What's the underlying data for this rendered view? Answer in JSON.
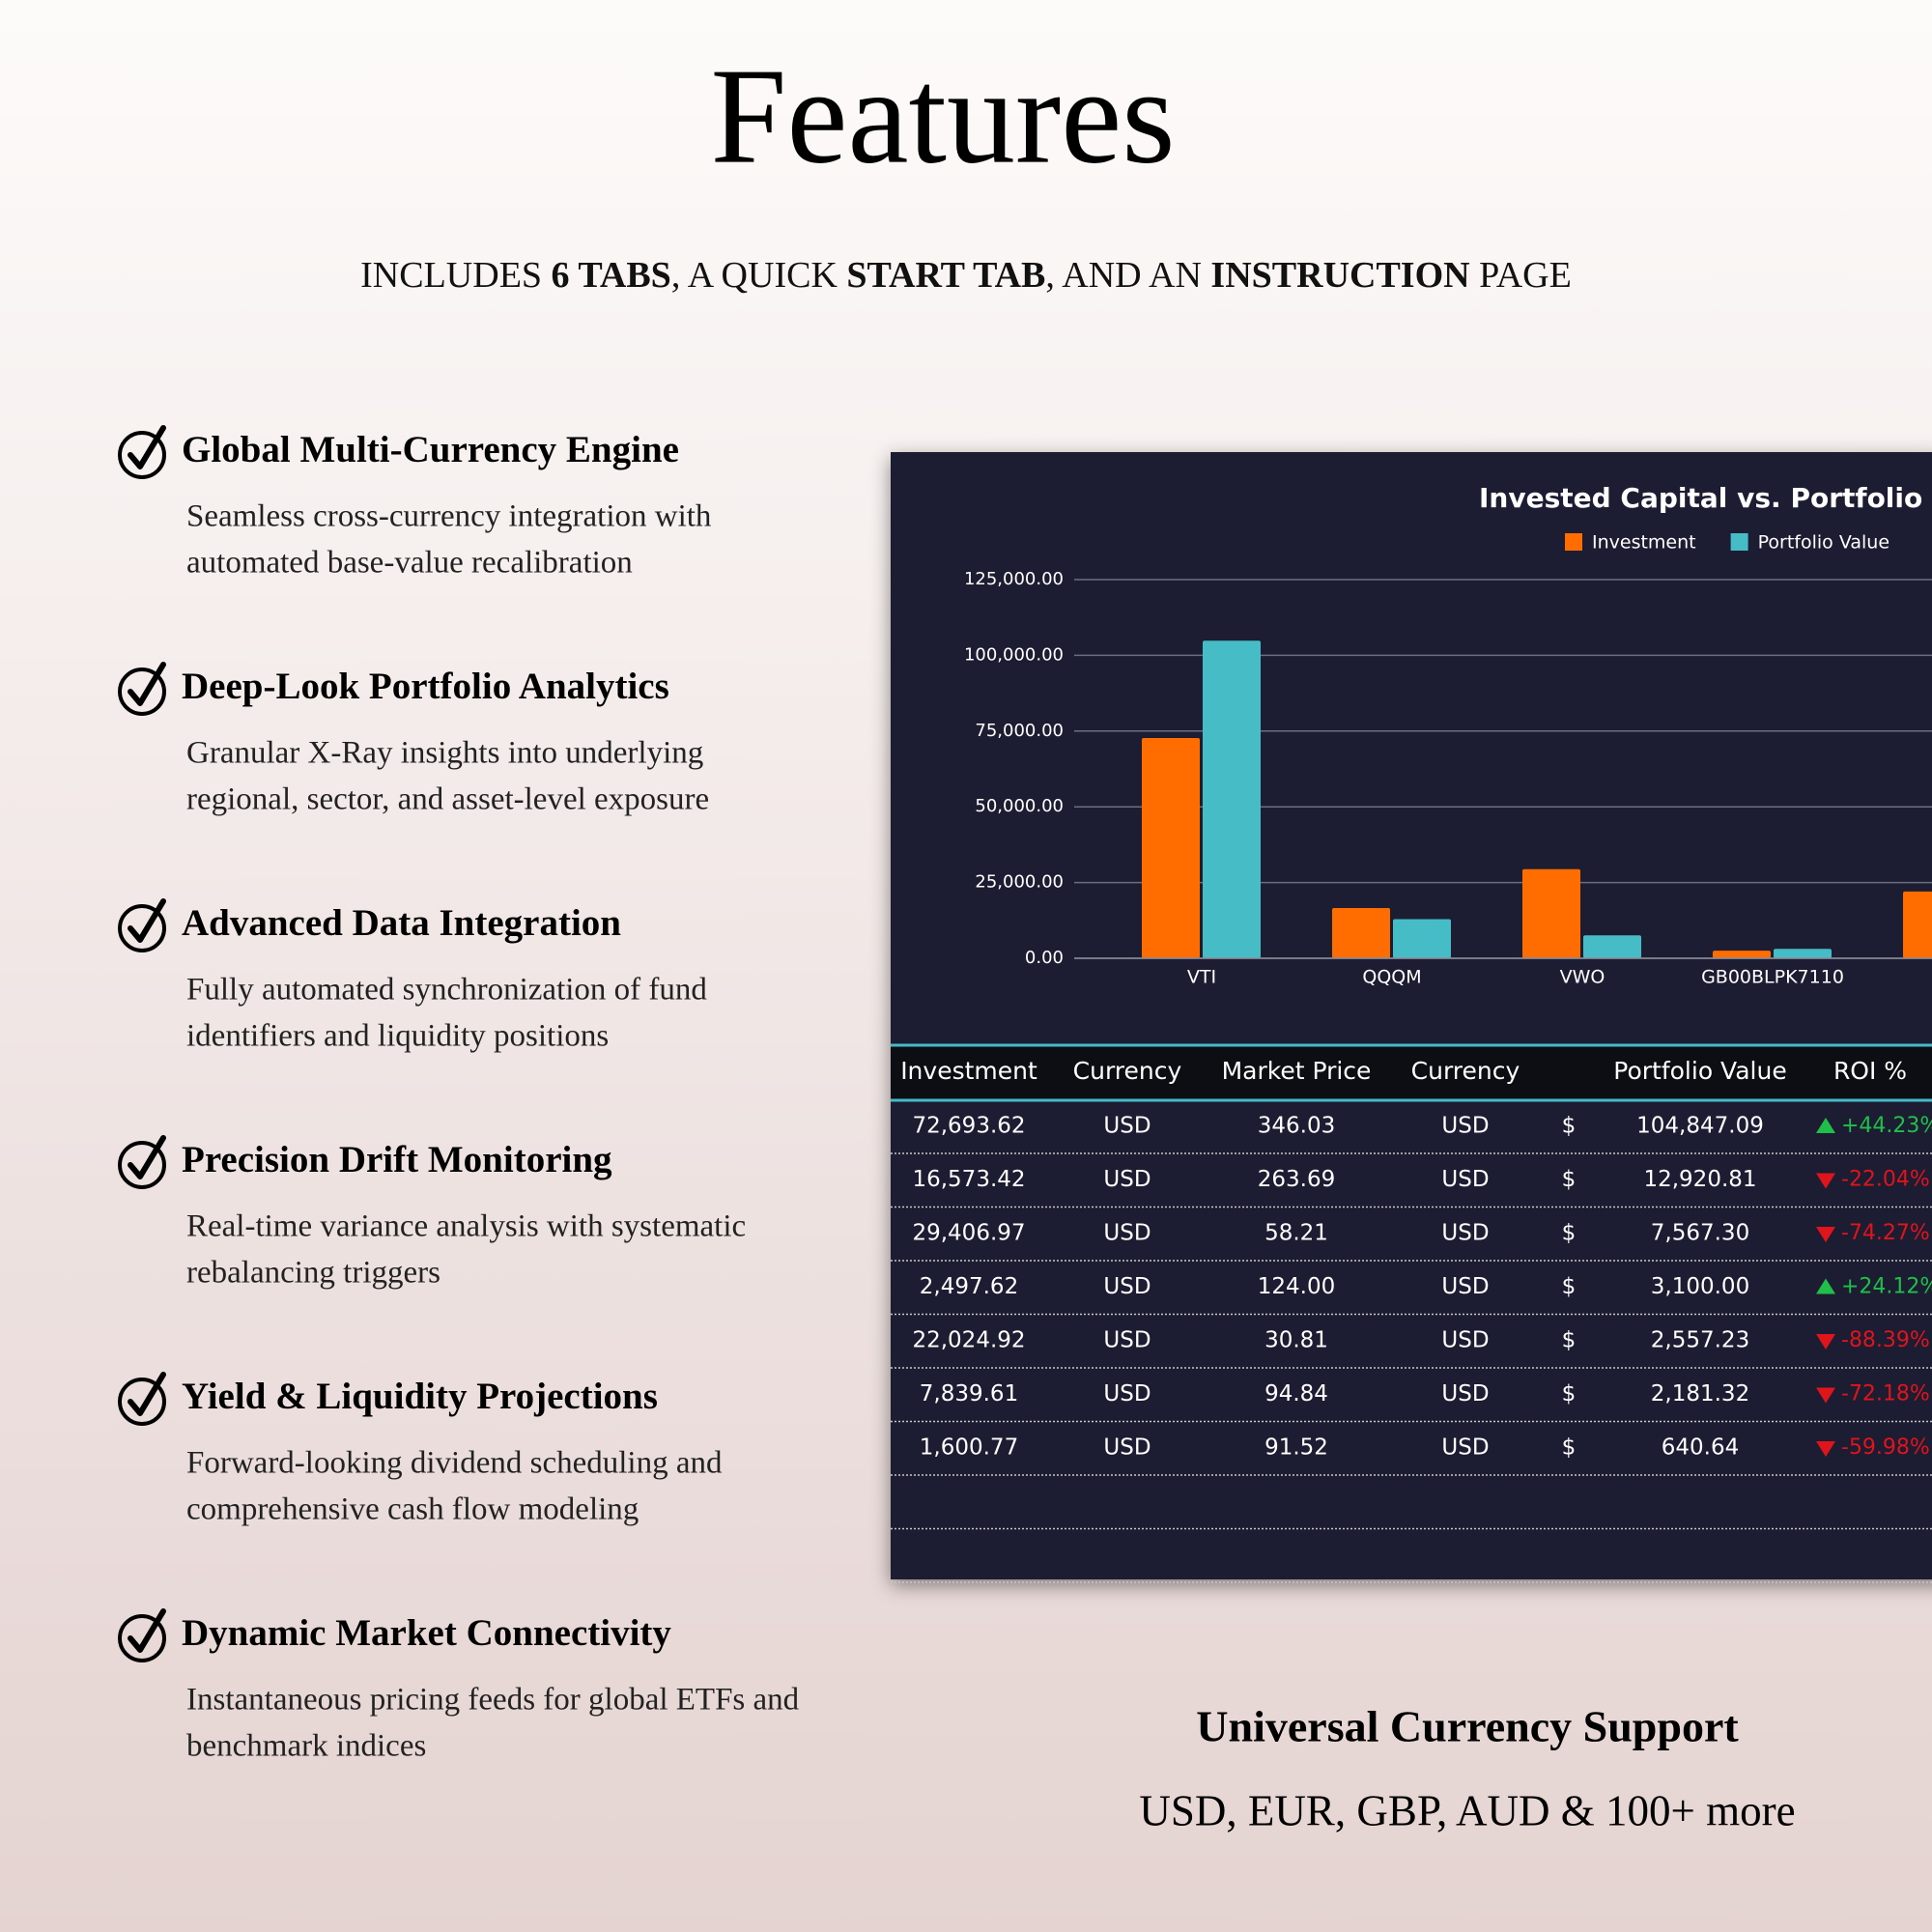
{
  "header": {
    "title": "Features",
    "subtitle": [
      {
        "text": "INCLUDES ",
        "bold": false
      },
      {
        "text": "6 TABS",
        "bold": true
      },
      {
        "text": ", A QUICK ",
        "bold": false
      },
      {
        "text": "START TAB",
        "bold": true
      },
      {
        "text": ", AND AN ",
        "bold": false
      },
      {
        "text": "INSTRUCTION",
        "bold": true
      },
      {
        "text": " PAGE",
        "bold": false
      }
    ]
  },
  "features": [
    {
      "title": "Global Multi-Currency Engine",
      "lines": [
        "Seamless cross-currency integration with",
        "automated base-value recalibration"
      ]
    },
    {
      "title": "Deep-Look Portfolio Analytics",
      "lines": [
        "Granular X-Ray insights into underlying",
        "regional, sector, and asset-level exposure"
      ]
    },
    {
      "title": "Advanced Data Integration",
      "lines": [
        "Fully automated synchronization of fund",
        "identifiers and liquidity positions"
      ]
    },
    {
      "title": "Precision Drift Monitoring",
      "lines": [
        "Real-time variance analysis with systematic",
        "rebalancing triggers"
      ]
    },
    {
      "title": "Yield & Liquidity Projections",
      "lines": [
        "Forward-looking dividend scheduling and",
        "comprehensive cash flow modeling"
      ]
    },
    {
      "title": "Dynamic Market Connectivity",
      "lines": [
        "Instantaneous pricing feeds for global ETFs and",
        "benchmark indices"
      ]
    }
  ],
  "chart_data": {
    "type": "bar",
    "title": "Invested Capital vs. Portfolio Valu",
    "categories": [
      "VTI",
      "QQQM",
      "VWO",
      "GB00BLPK7110",
      null
    ],
    "series": [
      {
        "name": "Investment",
        "color": "#ff6d01",
        "values": [
          72693.62,
          16573.42,
          29406.97,
          2497.62,
          22024.92
        ]
      },
      {
        "name": "Portfolio Value",
        "color": "#46bdc6",
        "values": [
          104847.09,
          12920.81,
          7567.3,
          3100.0,
          null
        ]
      }
    ],
    "ylim": [
      0,
      125000
    ],
    "yticks": [
      {
        "value": 0,
        "label": "0.00"
      },
      {
        "value": 25000,
        "label": "25,000.00"
      },
      {
        "value": 50000,
        "label": "50,000.00"
      },
      {
        "value": 75000,
        "label": "75,000.00"
      },
      {
        "value": 100000,
        "label": "100,000.00"
      },
      {
        "value": 125000,
        "label": "125,000.00"
      }
    ],
    "grid": true,
    "legend": "top"
  },
  "table": {
    "headers": [
      "Investment",
      "Currency",
      "Market Price",
      "Currency",
      "Portfolio Value",
      "ROI %"
    ],
    "rows": [
      [
        "72,693.62",
        "USD",
        "346.03",
        "USD",
        "$",
        "104,847.09",
        "+44.23%"
      ],
      [
        "16,573.42",
        "USD",
        "263.69",
        "USD",
        "$",
        "12,920.81",
        "-22.04%"
      ],
      [
        "29,406.97",
        "USD",
        "58.21",
        "USD",
        "$",
        "7,567.30",
        "-74.27%"
      ],
      [
        "2,497.62",
        "USD",
        "124.00",
        "USD",
        "$",
        "3,100.00",
        "+24.12%"
      ],
      [
        "22,024.92",
        "USD",
        "30.81",
        "USD",
        "$",
        "2,557.23",
        "-88.39%"
      ],
      [
        "7,839.61",
        "USD",
        "94.84",
        "USD",
        "$",
        "2,181.32",
        "-72.18%"
      ],
      [
        "1,600.77",
        "USD",
        "91.52",
        "USD",
        "$",
        "640.64",
        "-59.98%"
      ]
    ]
  },
  "footer": {
    "title": "Universal Currency Support",
    "text": "USD, EUR, GBP, AUD & 100+ more"
  }
}
